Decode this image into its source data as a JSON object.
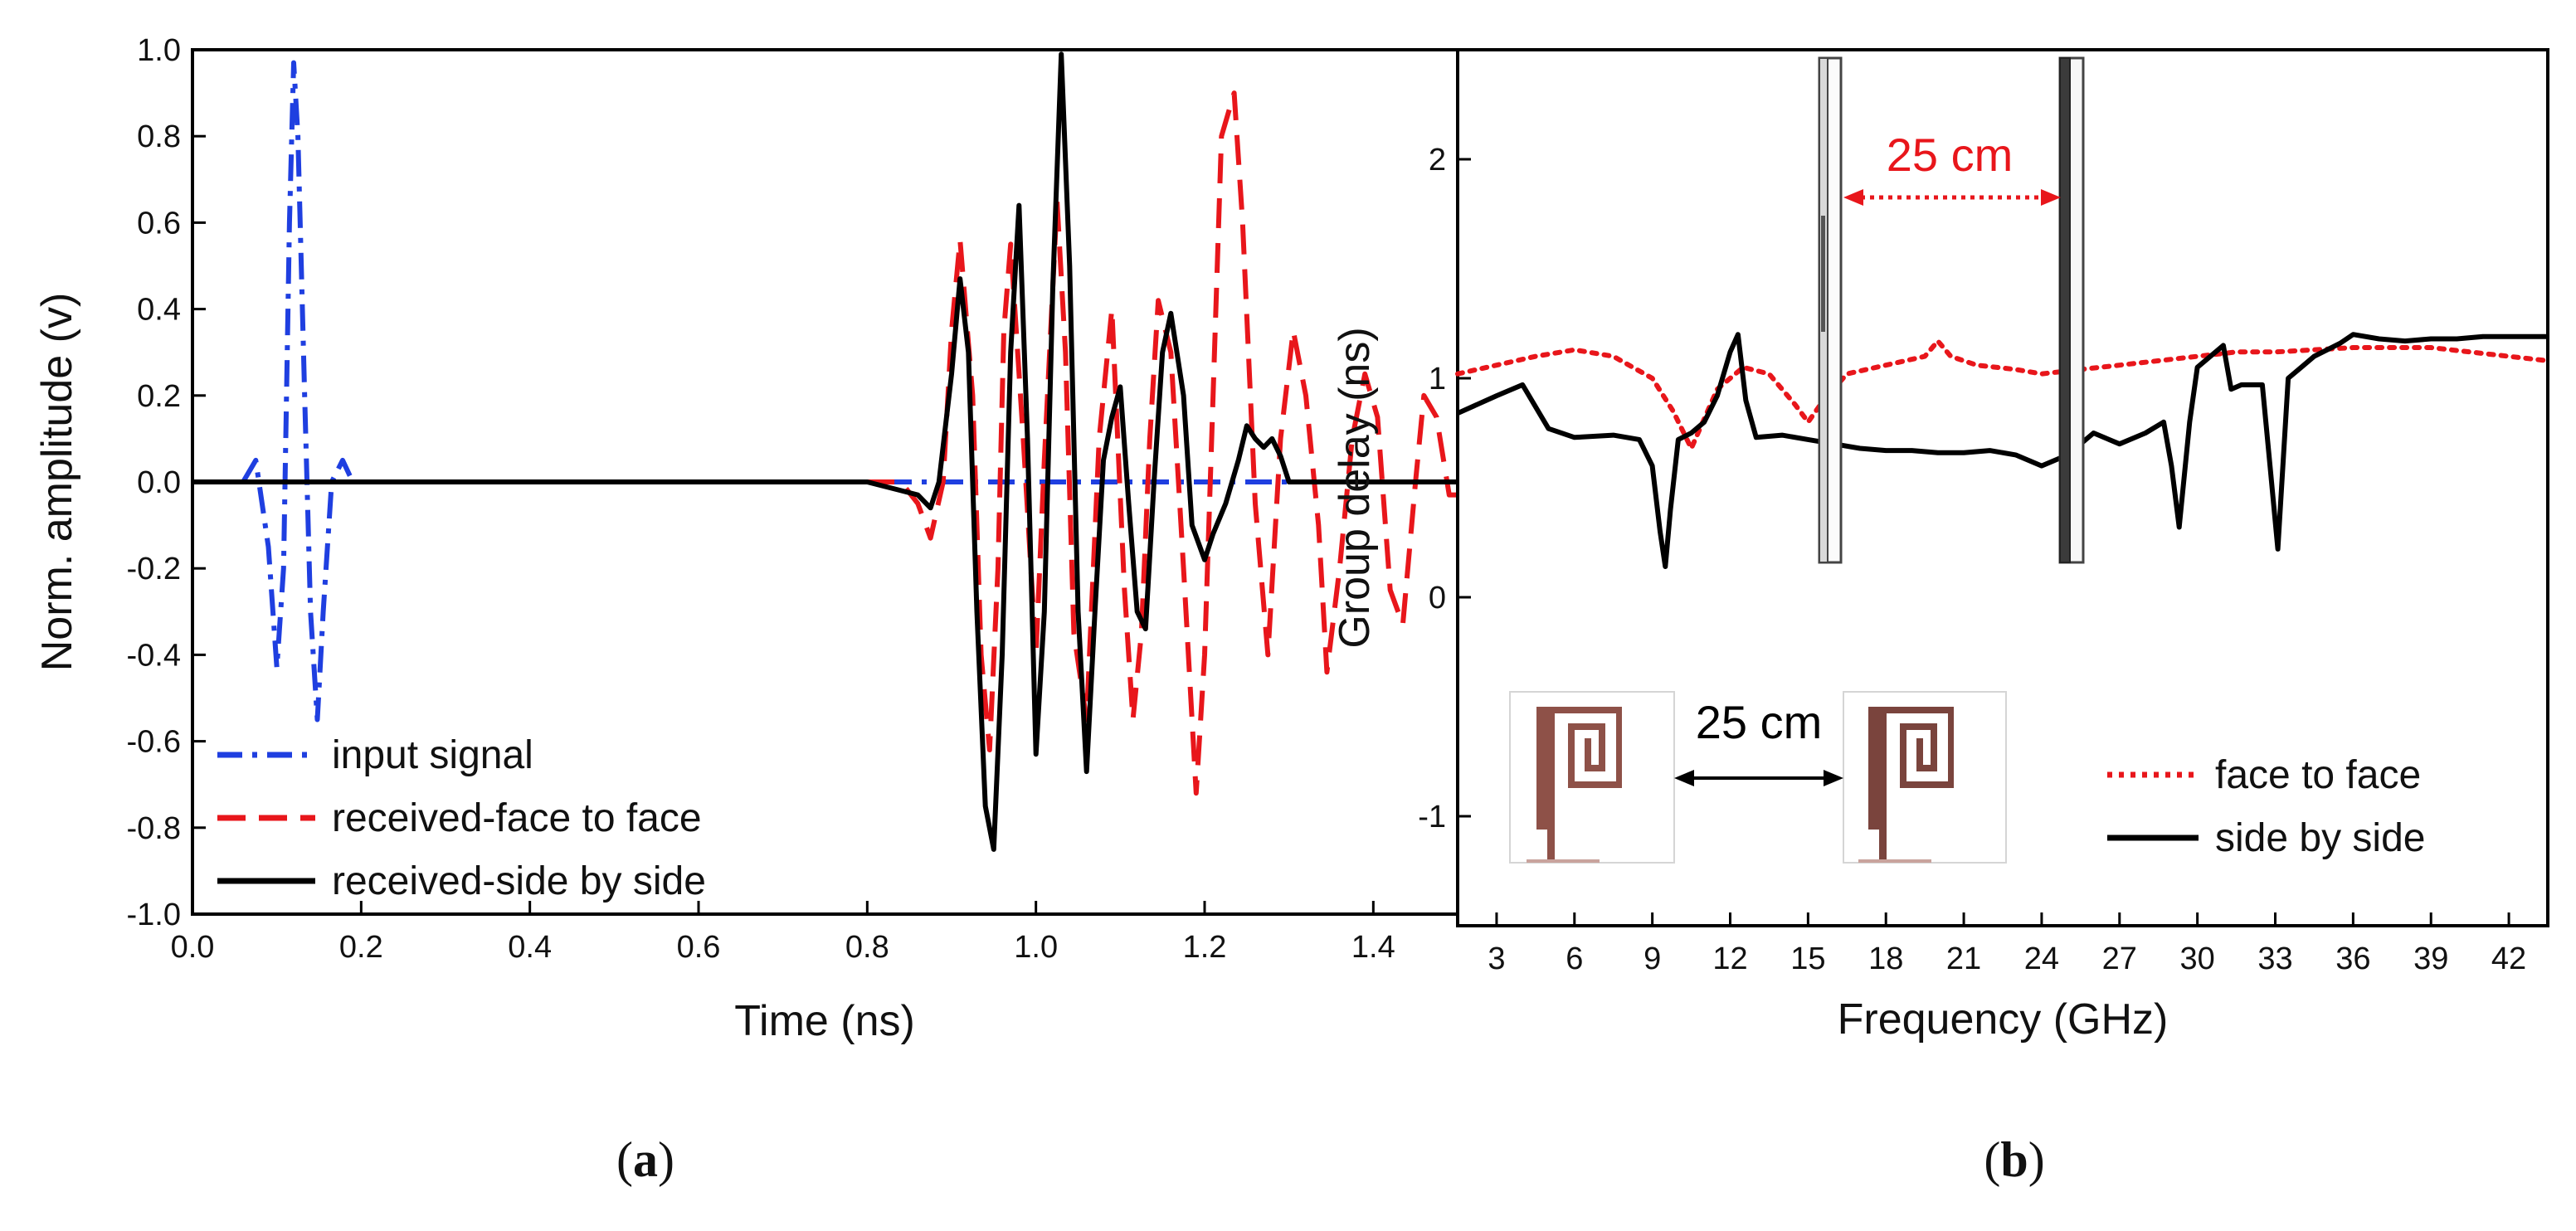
{
  "chart_data": [
    {
      "type": "line",
      "panel_label": "a",
      "title": "",
      "xlabel": "Time (ns)",
      "ylabel": "Norm. amplitude (v)",
      "xlim": [
        0,
        1.5
      ],
      "ylim": [
        -1.0,
        1.0
      ],
      "xticks": [
        0.0,
        0.2,
        0.4,
        0.6,
        0.8,
        1.0,
        1.2,
        1.4
      ],
      "xtick_labels": [
        "0.0",
        "0.2",
        "0.4",
        "0.6",
        "0.8",
        "1.0",
        "1.2",
        "1.4"
      ],
      "yticks": [
        1.0,
        0.8,
        0.6,
        0.4,
        0.2,
        0.0,
        -0.2,
        -0.4,
        -0.6,
        -0.8,
        -1.0
      ],
      "ytick_labels": [
        "1.0",
        "0.8",
        "0.6",
        "0.4",
        "0.2",
        "0.0",
        "-0.2",
        "-0.4",
        "-0.6",
        "-0.8",
        "-1.0"
      ],
      "grid": false,
      "legend_position": "bottom-left",
      "series": [
        {
          "name": "input signal",
          "color": "#1f3fe0",
          "dash": "dash-dot",
          "x": [
            0.0,
            0.06,
            0.075,
            0.09,
            0.1,
            0.108,
            0.115,
            0.12,
            0.125,
            0.133,
            0.14,
            0.148,
            0.155,
            0.165,
            0.178,
            0.19,
            0.2,
            1.5
          ],
          "y": [
            0.0,
            0.0,
            0.05,
            -0.15,
            -0.43,
            -0.2,
            0.6,
            0.97,
            0.8,
            0.2,
            -0.3,
            -0.55,
            -0.3,
            0.0,
            0.05,
            0.0,
            0.0,
            0.0
          ]
        },
        {
          "name": "received-face to face",
          "color": "#e8161b",
          "dash": "dash",
          "x": [
            0.0,
            0.84,
            0.86,
            0.875,
            0.89,
            0.9,
            0.91,
            0.925,
            0.935,
            0.945,
            0.955,
            0.962,
            0.97,
            0.985,
            1.0,
            1.01,
            1.025,
            1.035,
            1.045,
            1.06,
            1.075,
            1.09,
            1.105,
            1.115,
            1.125,
            1.135,
            1.145,
            1.16,
            1.175,
            1.19,
            1.2,
            1.21,
            1.22,
            1.235,
            1.245,
            1.26,
            1.275,
            1.29,
            1.305,
            1.32,
            1.335,
            1.345,
            1.36,
            1.375,
            1.39,
            1.405,
            1.42,
            1.435,
            1.45,
            1.46,
            1.475,
            1.49,
            1.5
          ],
          "y": [
            0.0,
            0.0,
            -0.05,
            -0.13,
            0.0,
            0.35,
            0.56,
            0.2,
            -0.4,
            -0.62,
            -0.2,
            0.35,
            0.55,
            0.1,
            -0.4,
            0.05,
            0.65,
            0.3,
            -0.35,
            -0.55,
            0.1,
            0.4,
            -0.25,
            -0.55,
            -0.35,
            0.1,
            0.42,
            0.3,
            -0.2,
            -0.72,
            -0.4,
            0.2,
            0.8,
            0.9,
            0.6,
            -0.05,
            -0.4,
            0.1,
            0.35,
            0.2,
            -0.1,
            -0.44,
            -0.2,
            0.1,
            0.25,
            0.15,
            -0.25,
            -0.33,
            0.0,
            0.2,
            0.15,
            -0.03,
            -0.03
          ]
        },
        {
          "name": "received-side by side",
          "color": "#000000",
          "dash": "solid",
          "x": [
            0.0,
            0.76,
            0.8,
            0.84,
            0.86,
            0.875,
            0.885,
            0.9,
            0.91,
            0.92,
            0.93,
            0.94,
            0.95,
            0.96,
            0.97,
            0.98,
            0.99,
            1.0,
            1.01,
            1.02,
            1.03,
            1.04,
            1.05,
            1.06,
            1.07,
            1.08,
            1.09,
            1.1,
            1.11,
            1.12,
            1.13,
            1.14,
            1.15,
            1.16,
            1.175,
            1.185,
            1.2,
            1.21,
            1.225,
            1.24,
            1.25,
            1.26,
            1.27,
            1.28,
            1.29,
            1.3,
            1.5
          ],
          "y": [
            0.0,
            0.0,
            0.0,
            -0.02,
            -0.03,
            -0.06,
            0.0,
            0.25,
            0.47,
            0.3,
            -0.3,
            -0.75,
            -0.85,
            -0.4,
            0.3,
            0.64,
            0.1,
            -0.63,
            -0.3,
            0.45,
            0.99,
            0.5,
            -0.3,
            -0.67,
            -0.3,
            0.05,
            0.15,
            0.22,
            -0.05,
            -0.3,
            -0.34,
            0.0,
            0.3,
            0.39,
            0.2,
            -0.1,
            -0.18,
            -0.12,
            -0.05,
            0.05,
            0.13,
            0.1,
            0.08,
            0.1,
            0.06,
            0.0,
            0.0
          ]
        }
      ]
    },
    {
      "type": "line",
      "panel_label": "b",
      "title": "",
      "xlabel": "Frequency (GHz)",
      "ylabel": "Group delay (ns)",
      "xlim": [
        1.5,
        43.5
      ],
      "ylim": [
        -1.5,
        2.5
      ],
      "xticks": [
        3,
        6,
        9,
        12,
        15,
        18,
        21,
        24,
        27,
        30,
        33,
        36,
        39,
        42
      ],
      "xtick_labels": [
        "3",
        "6",
        "9",
        "12",
        "15",
        "18",
        "21",
        "24",
        "27",
        "30",
        "33",
        "36",
        "39",
        "42"
      ],
      "yticks": [
        2,
        1,
        0,
        -1
      ],
      "ytick_labels": [
        "2",
        "1",
        "0",
        "-1"
      ],
      "grid": false,
      "legend_position": "bottom-right",
      "series": [
        {
          "name": "face to face",
          "color": "#e8161b",
          "dash": "dot",
          "x": [
            1.5,
            3,
            4.5,
            6,
            7.5,
            9,
            9.8,
            10.5,
            11.5,
            12.5,
            13.5,
            14.5,
            15,
            15.6,
            16.5,
            18,
            19.5,
            20,
            20.5,
            21.5,
            23,
            24,
            25.5,
            27,
            28.5,
            30,
            31.5,
            33,
            34.5,
            36,
            37.5,
            39,
            40.5,
            42,
            43.5
          ],
          "y": [
            1.02,
            1.06,
            1.1,
            1.13,
            1.1,
            1.0,
            0.85,
            0.68,
            0.95,
            1.05,
            1.02,
            0.88,
            0.8,
            0.9,
            1.02,
            1.06,
            1.1,
            1.17,
            1.1,
            1.06,
            1.04,
            1.02,
            1.04,
            1.06,
            1.08,
            1.1,
            1.12,
            1.12,
            1.13,
            1.14,
            1.14,
            1.14,
            1.12,
            1.1,
            1.08
          ]
        },
        {
          "name": "side by side",
          "color": "#000000",
          "dash": "solid",
          "x": [
            1.5,
            3,
            4,
            5,
            6,
            7.5,
            8.5,
            9,
            9.3,
            9.5,
            9.7,
            10,
            10.5,
            11,
            11.5,
            12,
            12.3,
            12.6,
            13,
            14,
            15,
            16,
            17,
            18,
            19,
            20,
            21,
            22,
            23,
            24,
            25,
            26,
            27,
            28,
            28.7,
            29,
            29.3,
            29.7,
            30,
            30.5,
            31,
            31.3,
            31.7,
            32,
            32.5,
            32.8,
            33.1,
            33.5,
            34,
            34.5,
            35,
            35.5,
            36,
            37,
            38,
            39,
            40,
            41,
            42,
            43.5
          ],
          "y": [
            0.84,
            0.92,
            0.97,
            0.77,
            0.73,
            0.74,
            0.72,
            0.6,
            0.3,
            0.14,
            0.4,
            0.72,
            0.75,
            0.8,
            0.92,
            1.12,
            1.2,
            0.9,
            0.73,
            0.74,
            0.72,
            0.7,
            0.68,
            0.67,
            0.67,
            0.66,
            0.66,
            0.67,
            0.65,
            0.6,
            0.65,
            0.75,
            0.7,
            0.75,
            0.8,
            0.6,
            0.32,
            0.8,
            1.05,
            1.1,
            1.15,
            0.95,
            0.97,
            0.97,
            0.97,
            0.6,
            0.22,
            1.0,
            1.05,
            1.1,
            1.13,
            1.16,
            1.2,
            1.18,
            1.17,
            1.18,
            1.18,
            1.19,
            1.19,
            1.19
          ]
        }
      ],
      "insets": {
        "top_distance_label": "25 cm",
        "bottom_distance_label": "25 cm"
      }
    }
  ]
}
